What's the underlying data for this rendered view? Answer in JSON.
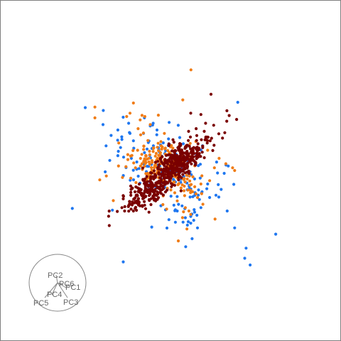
{
  "chart_data": {
    "type": "scatter",
    "title": "",
    "xlabel": "",
    "ylabel": "",
    "grid": false,
    "legend": "none",
    "xlim": [
      -4,
      4
    ],
    "ylim": [
      -4,
      4
    ],
    "series": [
      {
        "color": "#1f77f0",
        "clusters": [
          {
            "n": 70,
            "center": [
              -0.18,
              0.18
            ],
            "sd": [
              0.28,
              0.22
            ],
            "rot": -0.3
          },
          {
            "n": 55,
            "center": [
              0.25,
              -0.3
            ],
            "sd": [
              0.25,
              0.3
            ],
            "rot": -0.6
          },
          {
            "n": 45,
            "center": [
              0.0,
              0.0
            ],
            "sd": [
              0.55,
              0.55
            ],
            "rot": -0.78
          }
        ],
        "points": [
          [
            -1.0,
            0.68
          ],
          [
            -0.78,
            0.6
          ],
          [
            -0.62,
            0.7
          ],
          [
            -0.55,
            0.44
          ],
          [
            -0.72,
            0.46
          ],
          [
            -0.88,
            0.52
          ],
          [
            -0.9,
            0.15
          ],
          [
            -0.58,
            0.18
          ],
          [
            -0.5,
            0.02
          ],
          [
            -0.6,
            0.55
          ],
          [
            -0.4,
            0.55
          ],
          [
            -0.3,
            0.66
          ],
          [
            -0.2,
            0.6
          ],
          [
            -0.74,
            0.34
          ],
          [
            -0.78,
            0.22
          ],
          [
            0.3,
            -0.68
          ],
          [
            0.35,
            -0.58
          ],
          [
            0.45,
            -0.55
          ],
          [
            0.3,
            -0.78
          ],
          [
            0.4,
            -0.85
          ],
          [
            0.22,
            -0.7
          ],
          [
            0.58,
            -0.4
          ],
          [
            0.75,
            -0.28
          ],
          [
            0.84,
            -0.6
          ],
          [
            0.95,
            -0.85
          ],
          [
            1.12,
            -1.15
          ],
          [
            1.18,
            -1.4
          ],
          [
            1.1,
            -1.3
          ],
          [
            0.55,
            -0.2
          ],
          [
            0.1,
            -0.6
          ]
        ]
      },
      {
        "color": "#f07c16",
        "clusters": [
          {
            "n": 130,
            "center": [
              -0.15,
              0.12
            ],
            "sd": [
              0.2,
              0.16
            ],
            "rot": -0.2
          },
          {
            "n": 70,
            "center": [
              0.05,
              -0.08
            ],
            "sd": [
              0.26,
              0.2
            ],
            "rot": -0.7
          },
          {
            "n": 30,
            "center": [
              0.0,
              0.0
            ],
            "sd": [
              0.55,
              0.5
            ],
            "rot": -0.6
          }
        ],
        "points": [
          [
            -1.12,
            0.94
          ],
          [
            -1.12,
            0.78
          ],
          [
            -0.6,
            0.85
          ],
          [
            -0.45,
            0.75
          ],
          [
            -0.55,
            1.0
          ],
          [
            -0.48,
            0.62
          ],
          [
            -0.38,
            0.8
          ],
          [
            -0.3,
            0.68
          ],
          [
            -0.65,
            0.8
          ],
          [
            -0.18,
            0.82
          ],
          [
            0.72,
            0.18
          ],
          [
            0.82,
            0.1
          ],
          [
            0.92,
            0.04
          ],
          [
            0.65,
            0.04
          ],
          [
            0.95,
            0.0
          ],
          [
            0.55,
            0.3
          ],
          [
            0.4,
            -0.4
          ],
          [
            0.22,
            -0.55
          ],
          [
            0.48,
            -0.5
          ],
          [
            0.2,
            -0.3
          ],
          [
            0.66,
            -0.72
          ],
          [
            0.45,
            -0.2
          ],
          [
            0.3,
            -0.65
          ],
          [
            0.1,
            -0.45
          ],
          [
            0.58,
            -0.15
          ]
        ]
      },
      {
        "color": "#7a0000",
        "clusters": [
          {
            "n": 380,
            "center": [
              0.0,
              0.0
            ],
            "sd": [
              0.42,
              0.1
            ],
            "rot": 0.73
          },
          {
            "n": 110,
            "center": [
              0.12,
              0.18
            ],
            "sd": [
              0.16,
              0.1
            ],
            "rot": 0.5
          },
          {
            "n": 50,
            "center": [
              -0.28,
              -0.3
            ],
            "sd": [
              0.18,
              0.07
            ],
            "rot": 0.5
          }
        ],
        "points": [
          [
            0.6,
            1.13
          ],
          [
            0.45,
            0.83
          ],
          [
            0.52,
            0.7
          ],
          [
            0.38,
            0.62
          ],
          [
            0.5,
            0.58
          ],
          [
            0.3,
            0.85
          ],
          [
            -0.7,
            -0.42
          ],
          [
            -0.72,
            -0.55
          ],
          [
            -0.68,
            -0.6
          ],
          [
            -0.55,
            -0.6
          ],
          [
            -0.6,
            -0.5
          ],
          [
            -0.5,
            -0.48
          ],
          [
            -0.42,
            -0.52
          ],
          [
            -0.22,
            -0.45
          ],
          [
            0.05,
            0.42
          ]
        ]
      }
    ],
    "biplot": {
      "labels": [
        "PC2",
        "PC6",
        "PC1",
        "PC4",
        "PC5",
        "PC3"
      ],
      "label_color": "#666666",
      "circle_color": "#888888"
    }
  }
}
